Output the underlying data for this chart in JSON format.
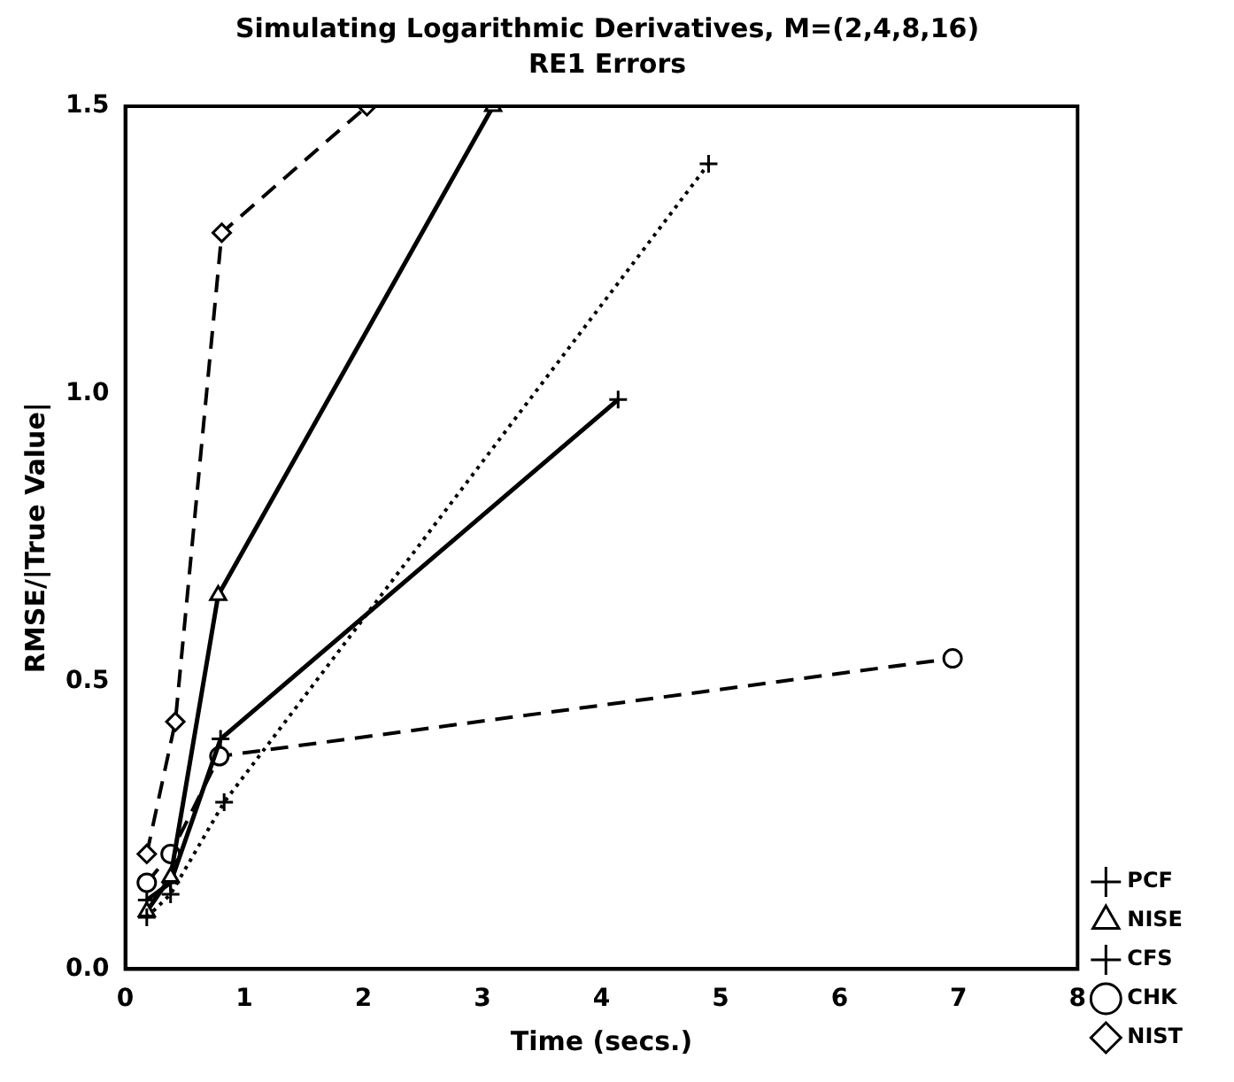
{
  "chart_data": {
    "type": "line",
    "title": "Simulating Logarithmic Derivatives, M=(2,4,8,16)",
    "subtitle": "RE1 Errors",
    "xlabel": "Time (secs.)",
    "ylabel": "RMSE/|True Value|",
    "xlim": [
      0,
      8
    ],
    "xticks": [
      0,
      1,
      2,
      3,
      4,
      5,
      6,
      7,
      8
    ],
    "ylim": [
      0,
      1.5
    ],
    "yticks": [
      {
        "value": 0,
        "label": "0.0"
      },
      {
        "value": 0.5,
        "label": "0.5"
      },
      {
        "value": 1,
        "label": "1.0"
      },
      {
        "value": 1.5,
        "label": "1.5"
      }
    ],
    "grid": false,
    "legend": "bottom right",
    "series": [
      {
        "name": "PCF",
        "color": "#000000",
        "marker": "cross",
        "line_style": "dotted",
        "x": [
          0.18,
          0.38,
          0.83,
          4.9
        ],
        "values": [
          0.09,
          0.13,
          0.29,
          1.4
        ]
      },
      {
        "name": "NISE",
        "color": "#000000",
        "marker": "triangle",
        "line_style": "solid",
        "x": [
          0.18,
          0.38,
          0.78,
          3.09
        ],
        "values": [
          0.1,
          0.16,
          0.65,
          1.5
        ]
      },
      {
        "name": "CFS",
        "color": "#000000",
        "marker": "cross",
        "line_style": "solid",
        "x": [
          0.18,
          0.38,
          0.8,
          4.14
        ],
        "values": [
          0.12,
          0.15,
          0.4,
          0.99
        ]
      },
      {
        "name": "CHK",
        "color": "#000000",
        "marker": "circle",
        "line_style": "dashed",
        "x": [
          0.18,
          0.38,
          0.79,
          6.95
        ],
        "values": [
          0.15,
          0.2,
          0.37,
          0.54
        ]
      },
      {
        "name": "NIST",
        "color": "#000000",
        "marker": "diamond",
        "line_style": "dashed",
        "x": [
          0.18,
          0.42,
          0.81,
          2.03
        ],
        "values": [
          0.2,
          0.43,
          1.28,
          1.5
        ]
      }
    ]
  }
}
